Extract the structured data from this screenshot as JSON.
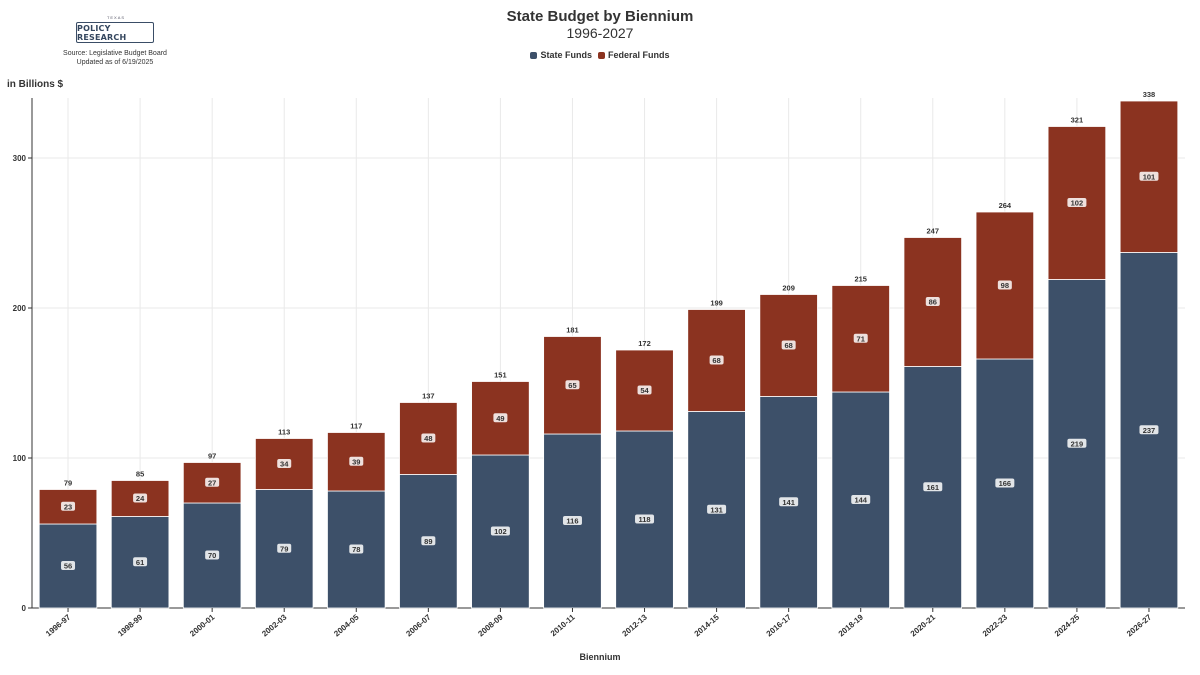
{
  "header": {
    "logo_small": "TEXAS",
    "logo_brand": "POLICY RESEARCH",
    "source": "Source: Legislative Budget Board",
    "updated": "Updated as of 6/19/2025"
  },
  "colors": {
    "state": "#3d5069",
    "federal": "#8b3320",
    "grid": "#e9e9e9",
    "axis": "#333333"
  },
  "chart_data": {
    "type": "bar",
    "stacked": true,
    "title": "State Budget by Biennium",
    "subtitle": "1996-2027",
    "xlabel": "Biennium",
    "ylabel": "in Billions $",
    "ylim": [
      0,
      340
    ],
    "yticks": [
      0,
      100,
      200,
      300
    ],
    "grid": true,
    "legend_position": "top-center",
    "categories": [
      "1996-97",
      "1998-99",
      "2000-01",
      "2002-03",
      "2004-05",
      "2006-07",
      "2008-09",
      "2010-11",
      "2012-13",
      "2014-15",
      "2016-17",
      "2018-19",
      "2020-21",
      "2022-23",
      "2024-25",
      "2026-27"
    ],
    "series": [
      {
        "name": "State Funds",
        "values": [
          56,
          61,
          70,
          79,
          78,
          89,
          102,
          116,
          118,
          131,
          141,
          144,
          161,
          166,
          219,
          237
        ]
      },
      {
        "name": "Federal Funds",
        "values": [
          23,
          24,
          27,
          34,
          39,
          48,
          49,
          65,
          54,
          68,
          68,
          71,
          86,
          98,
          102,
          101
        ]
      }
    ],
    "totals": [
      79,
      85,
      97,
      113,
      117,
      137,
      151,
      181,
      172,
      199,
      209,
      215,
      247,
      264,
      321,
      338
    ]
  }
}
